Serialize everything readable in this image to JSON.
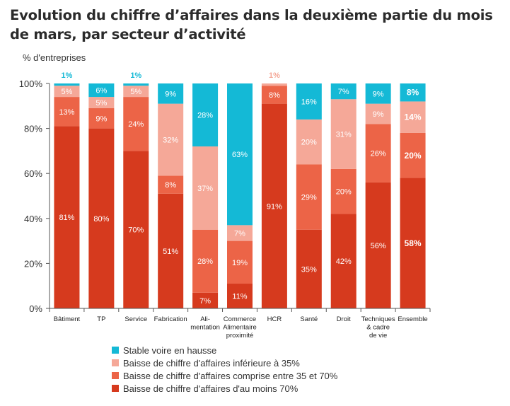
{
  "title": "Evolution du chiffre d’affaires dans la deuxième partie du mois de mars, par secteur d’activité",
  "chart_data": {
    "type": "bar",
    "stacked": true,
    "ylabel": "% d'entreprises",
    "ylim": [
      0,
      100
    ],
    "yticks": [
      "0%",
      "20%",
      "40%",
      "60%",
      "80%",
      "100%"
    ],
    "categories": [
      "Bâtiment",
      "TP",
      "Service",
      "Fabrication",
      "Ali-\nmentation",
      "Commerce\nAlimentaire\nproximité",
      "HCR",
      "Santé",
      "Droit",
      "Techniques\n& cadre\nde vie",
      "Ensemble"
    ],
    "series": [
      {
        "name": "Baisse de chiffre d'affaires d'au moins 70%",
        "color": "#d63a1e",
        "values": [
          81,
          80,
          70,
          51,
          7,
          11,
          91,
          35,
          42,
          56,
          58
        ]
      },
      {
        "name": "Baisse de chiffre d'affaires comprise entre 35 et 70%",
        "color": "#ec6447",
        "values": [
          13,
          9,
          24,
          8,
          28,
          19,
          8,
          29,
          20,
          26,
          20
        ]
      },
      {
        "name": "Baisse de chiffre d'affaires inférieure à 35%",
        "color": "#f5a898",
        "values": [
          5,
          5,
          5,
          32,
          37,
          7,
          1,
          20,
          31,
          9,
          14
        ]
      },
      {
        "name": "Stable voire en hausse",
        "color": "#14b9d6",
        "values": [
          1,
          6,
          1,
          9,
          28,
          63,
          0,
          16,
          7,
          9,
          8
        ]
      }
    ],
    "data_labels": [
      [
        "81%",
        "13%",
        "5%",
        "1%"
      ],
      [
        "80%",
        "9%",
        "5%",
        "6%"
      ],
      [
        "70%",
        "24%",
        "5%",
        "1%"
      ],
      [
        "51%",
        "8%",
        "32%",
        "9%"
      ],
      [
        "7%",
        "28%",
        "37%",
        "28%"
      ],
      [
        "11%",
        "19%",
        "7%",
        "63%"
      ],
      [
        "91%",
        "8%",
        "1%",
        ""
      ],
      [
        "35%",
        "29%",
        "20%",
        "16%"
      ],
      [
        "42%",
        "20%",
        "31%",
        "7%"
      ],
      [
        "56%",
        "26%",
        "9%",
        "9%"
      ],
      [
        "58%",
        "20%",
        "14%",
        "8%"
      ]
    ],
    "emphasized_category": "Ensemble",
    "grid": false,
    "legend_position": "bottom-left"
  }
}
